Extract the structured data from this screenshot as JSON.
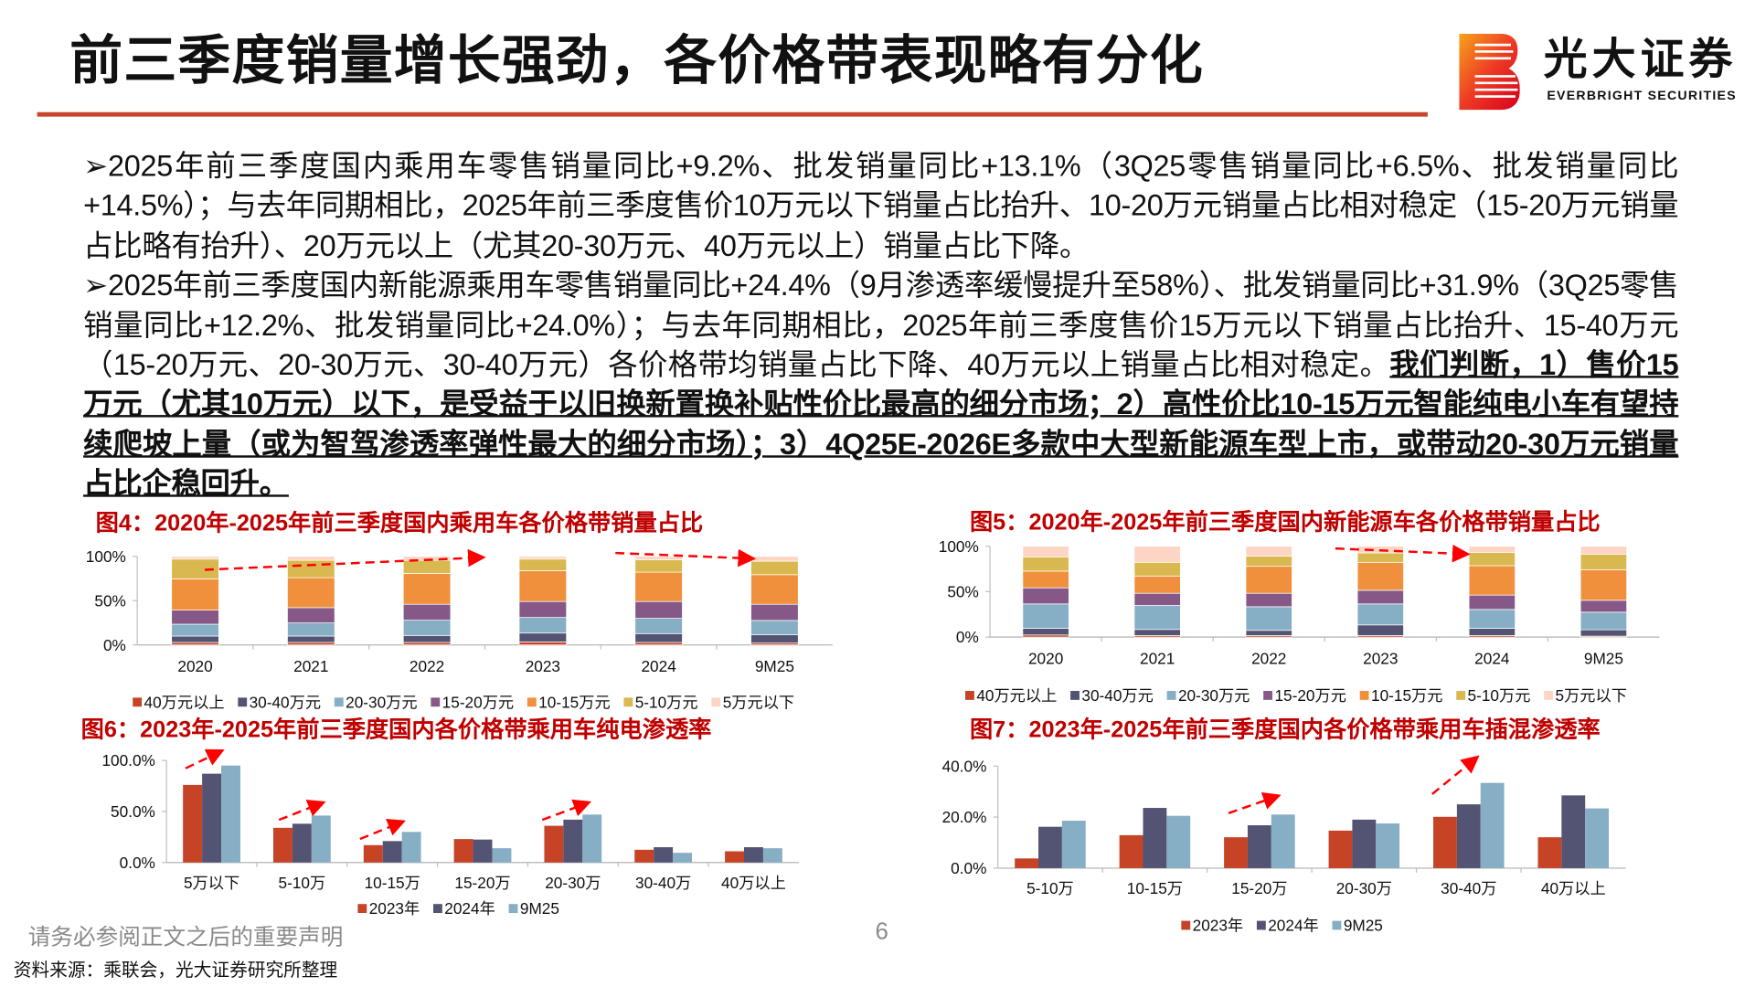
{
  "header": {
    "title": "前三季度销量增长强劲，各价格带表现略有分化",
    "brand_cn": "光大证券",
    "brand_en": "EVERBRIGHT SECURITIES"
  },
  "body": {
    "p1": "➢2025年前三季度国内乘用车零售销量同比+9.2%、批发销量同比+13.1%（3Q25零售销量同比+6.5%、批发销量同比+14.5%）；与去年同期相比，2025年前三季度售价10万元以下销量占比抬升、10-20万元销量占比相对稳定（15-20万元销量占比略有抬升）、20万元以上（尤其20-30万元、40万元以上）销量占比下降。",
    "p2": "➢2025年前三季度国内新能源乘用车零售销量同比+24.4%（9月渗透率缓慢提升至58%）、批发销量同比+31.9%（3Q25零售销量同比+12.2%、批发销量同比+24.0%）；与去年同期相比，2025年前三季度售价15万元以下销量占比抬升、15-40万元（15-20万元、20-30万元、30-40万元）各价格带均销量占比下降、40万元以上销量占比相对稳定。",
    "p2_emphasis": "我们判断，1）售价15万元（尤其10万元）以下，是受益于以旧换新置换补贴性价比最高的细分市场；2）高性价比10-15万元智能纯电小车有望持续爬坡上量（或为智驾渗透率弹性最大的细分市场）；3）4Q25E-2026E多款中大型新能源车型上市，或带动20-30万元销量占比企稳回升。"
  },
  "footer": {
    "disclaimer": "请务必参阅正文之后的重要声明",
    "page_number": "6",
    "source": "资料来源：乘联会，光大证券研究所整理"
  },
  "colors": {
    "accent_red": "#c00000",
    "rule": "#c8452c",
    "40万元以上": "#c64325",
    "30-40万元": "#535373",
    "20-30万元": "#86aec4",
    "15-20万元": "#865887",
    "10-15万元": "#f0903c",
    "5-10万元": "#d9b84f",
    "5万元以下": "#fdd5c4"
  },
  "chart_data": [
    {
      "id": "fig4",
      "type": "bar",
      "stacked": true,
      "title": "图4：2020年-2025年前三季度国内乘用车各价格带销量占比",
      "categories": [
        "2020",
        "2021",
        "2022",
        "2023",
        "2024",
        "9M25"
      ],
      "yticks": [
        "0%",
        "50%",
        "100%"
      ],
      "ylim": [
        0,
        100
      ],
      "legend_position": "bottom",
      "series": [
        {
          "name": "40万元以上",
          "color": "#c64325",
          "values": [
            2.8,
            2.8,
            2.8,
            3.4,
            2.8,
            2.1
          ]
        },
        {
          "name": "30-40万元",
          "color": "#535373",
          "values": [
            7.2,
            7.2,
            7.9,
            10.0,
            10.0,
            9.3
          ]
        },
        {
          "name": "20-30万元",
          "color": "#86aec4",
          "values": [
            13.4,
            14.8,
            17.2,
            17.6,
            17.2,
            16.2
          ]
        },
        {
          "name": "15-20万元",
          "color": "#865887",
          "values": [
            15.9,
            17.3,
            18.0,
            18.0,
            19.0,
            18.3
          ]
        },
        {
          "name": "10-15万元",
          "color": "#f0903c",
          "values": [
            35.2,
            33.8,
            34.8,
            34.8,
            33.1,
            33.4
          ]
        },
        {
          "name": "5-10万元",
          "color": "#d9b84f",
          "values": [
            22.4,
            19.6,
            14.8,
            13.1,
            14.1,
            15.2
          ]
        },
        {
          "name": "5万元以下",
          "color": "#fdd5c4",
          "values": [
            3.1,
            4.5,
            4.5,
            3.1,
            3.8,
            5.5
          ]
        }
      ]
    },
    {
      "id": "fig5",
      "type": "bar",
      "stacked": true,
      "title": "图5：2020年-2025年前三季度国内新能源车各价格带销量占比",
      "categories": [
        "2020",
        "2021",
        "2022",
        "2023",
        "2024",
        "9M25"
      ],
      "yticks": [
        "0%",
        "50%",
        "100%"
      ],
      "ylim": [
        0,
        100
      ],
      "legend_position": "bottom",
      "series": [
        {
          "name": "40万元以上",
          "color": "#c64325",
          "values": [
            2.3,
            1.7,
            1.7,
            1.7,
            1.7,
            1.0
          ]
        },
        {
          "name": "30-40万元",
          "color": "#535373",
          "values": [
            7.4,
            6.7,
            5.7,
            11.7,
            8.0,
            7.0
          ]
        },
        {
          "name": "20-30万元",
          "color": "#86aec4",
          "values": [
            26.8,
            26.4,
            26.0,
            23.1,
            20.7,
            19.4
          ]
        },
        {
          "name": "15-20万元",
          "color": "#865887",
          "values": [
            17.7,
            13.4,
            14.8,
            15.0,
            15.8,
            13.1
          ]
        },
        {
          "name": "10-15万元",
          "color": "#f0903c",
          "values": [
            18.4,
            19.0,
            29.7,
            30.8,
            32.4,
            33.7
          ]
        },
        {
          "name": "5-10万元",
          "color": "#d9b84f",
          "values": [
            15.7,
            15.1,
            11.1,
            10.3,
            14.7,
            17.1
          ]
        },
        {
          "name": "5万元以下",
          "color": "#fdd5c4",
          "values": [
            11.7,
            17.7,
            11.0,
            7.4,
            6.7,
            8.7
          ]
        }
      ]
    },
    {
      "id": "fig6",
      "type": "bar",
      "stacked": false,
      "title": "图6：2023年-2025年前三季度国内各价格带乘用车纯电渗透率",
      "categories": [
        "5万以下",
        "5-10万",
        "10-15万",
        "15-20万",
        "20-30万",
        "30-40万",
        "40万以上"
      ],
      "yticks": [
        "0.0%",
        "50.0%",
        "100.0%"
      ],
      "ylim": [
        0,
        100
      ],
      "legend_position": "bottom",
      "series": [
        {
          "name": "2023年",
          "color": "#c64325",
          "values": [
            76,
            34,
            17,
            23,
            36,
            12.5,
            11
          ]
        },
        {
          "name": "2024年",
          "color": "#535373",
          "values": [
            87,
            38,
            21,
            22.5,
            42,
            15,
            15
          ]
        },
        {
          "name": "9M25",
          "color": "#86aec4",
          "values": [
            95,
            46,
            30,
            14,
            47,
            9.5,
            14
          ]
        }
      ]
    },
    {
      "id": "fig7",
      "type": "bar",
      "stacked": false,
      "title": "图7：2023年-2025年前三季度国内各价格带乘用车插混渗透率",
      "categories": [
        "5-10万",
        "10-15万",
        "15-20万",
        "20-30万",
        "30-40万",
        "40万以上"
      ],
      "yticks": [
        "0.0%",
        "20.0%",
        "40.0%"
      ],
      "ylim": [
        0,
        40
      ],
      "legend_position": "bottom",
      "series": [
        {
          "name": "2023年",
          "color": "#c64325",
          "values": [
            3.8,
            12.9,
            12.1,
            14.7,
            20.1,
            12.1
          ]
        },
        {
          "name": "2024年",
          "color": "#535373",
          "values": [
            16.2,
            23.6,
            16.8,
            19.0,
            25.0,
            28.5
          ]
        },
        {
          "name": "9M25",
          "color": "#86aec4",
          "values": [
            18.6,
            20.5,
            21.0,
            17.5,
            33.4,
            23.4
          ]
        }
      ]
    }
  ]
}
